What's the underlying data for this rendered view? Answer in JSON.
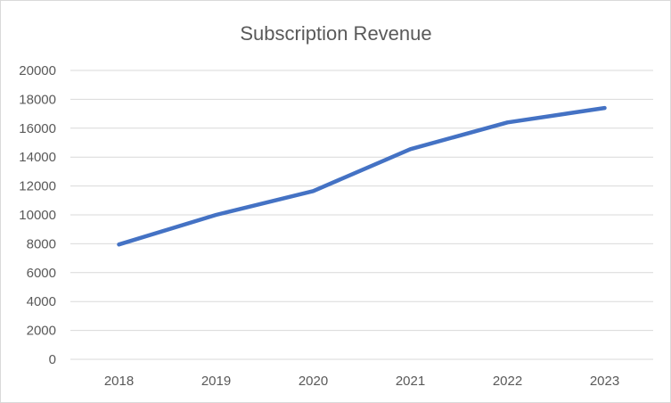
{
  "chart_data": {
    "type": "line",
    "title": "Subscription Revenue",
    "xlabel": "",
    "ylabel": "",
    "categories": [
      "2018",
      "2019",
      "2020",
      "2021",
      "2022",
      "2023"
    ],
    "series": [
      {
        "values": [
          7950,
          10000,
          11650,
          14550,
          16400,
          17400
        ],
        "color": "#4472c4"
      }
    ],
    "ylim": [
      0,
      20000
    ],
    "yticks": [
      "0",
      "2000",
      "4000",
      "6000",
      "8000",
      "10000",
      "12000",
      "14000",
      "16000",
      "18000",
      "20000"
    ],
    "grid": true,
    "legend": "none",
    "colors": {
      "line": "#4472c4",
      "grid": "#d9d9d9",
      "text": "#595959"
    }
  }
}
